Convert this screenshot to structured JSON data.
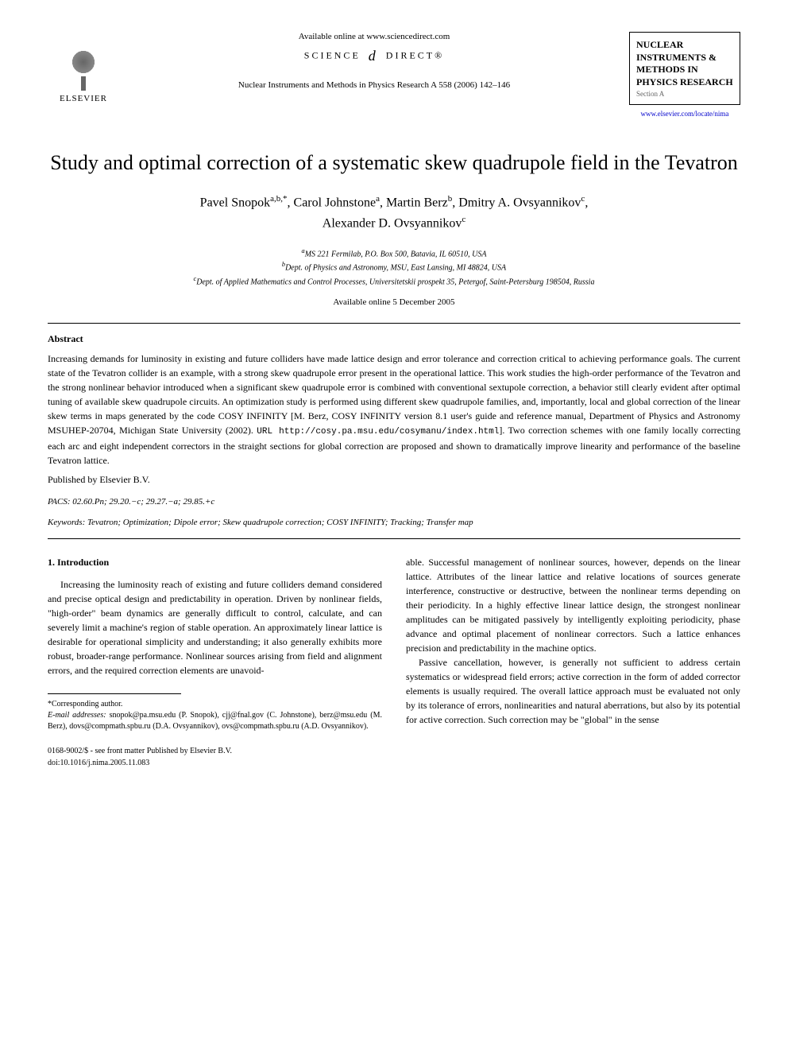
{
  "header": {
    "available_online": "Available online at www.sciencedirect.com",
    "science_direct_left": "SCIENCE",
    "science_direct_right": "DIRECT®",
    "journal_reference": "Nuclear Instruments and Methods in Physics Research A 558 (2006) 142–146",
    "publisher_name": "ELSEVIER",
    "journal_box_title": "NUCLEAR INSTRUMENTS & METHODS IN PHYSICS RESEARCH",
    "journal_box_section": "Section A",
    "journal_link": "www.elsevier.com/locate/nima"
  },
  "title": "Study and optimal correction of a systematic skew quadrupole field in the Tevatron",
  "authors_line1": "Pavel Snopok",
  "authors_sup1": "a,b,*",
  "authors_name2": ", Carol Johnstone",
  "authors_sup2": "a",
  "authors_name3": ", Martin Berz",
  "authors_sup3": "b",
  "authors_name4": ", Dmitry A. Ovsyannikov",
  "authors_sup4": "c",
  "authors_name5": "Alexander D. Ovsyannikov",
  "authors_sup5": "c",
  "affiliations": {
    "a": "MS 221 Fermilab, P.O. Box 500, Batavia, IL 60510, USA",
    "b": "Dept. of Physics and Astronomy, MSU, East Lansing, MI 48824, USA",
    "c": "Dept. of Applied Mathematics and Control Processes, Universitetskii prospekt 35, Petergof, Saint-Petersburg 198504, Russia"
  },
  "date_available": "Available online 5 December 2005",
  "abstract_heading": "Abstract",
  "abstract_text": "Increasing demands for luminosity in existing and future colliders have made lattice design and error tolerance and correction critical to achieving performance goals. The current state of the Tevatron collider is an example, with a strong skew quadrupole error present in the operational lattice. This work studies the high-order performance of the Tevatron and the strong nonlinear behavior introduced when a significant skew quadrupole error is combined with conventional sextupole correction, a behavior still clearly evident after optimal tuning of available skew quadrupole circuits. An optimization study is performed using different skew quadrupole families, and, importantly, local and global correction of the linear skew terms in maps generated by the code COSY INFINITY [M. Berz, COSY INFINITY version 8.1 user's guide and reference manual, Department of Physics and Astronomy MSUHEP-20704, Michigan State University (2002). ",
  "abstract_url_label": "URL ",
  "abstract_url": "http://cosy.pa.msu.edu/cosymanu/index.html",
  "abstract_text_after": "]. Two correction schemes with one family locally correcting each arc and eight independent correctors in the straight sections for global correction are proposed and shown to dramatically improve linearity and performance of the baseline Tevatron lattice.",
  "published_by": "Published by Elsevier B.V.",
  "pacs_label": "PACS:",
  "pacs_values": " 02.60.Pn; 29.20.−c; 29.27.−a; 29.85.+c",
  "keywords_label": "Keywords:",
  "keywords_values": " Tevatron; Optimization; Dipole error; Skew quadrupole correction; COSY INFINITY; Tracking; Transfer map",
  "intro_heading": "1. Introduction",
  "col1_p1": "Increasing the luminosity reach of existing and future colliders demand considered and precise optical design and predictability in operation. Driven by nonlinear fields, \"high-order\" beam dynamics are generally difficult to control, calculate, and can severely limit a machine's region of stable operation. An approximately linear lattice is desirable for operational simplicity and understanding; it also generally exhibits more robust, broader-range performance. Nonlinear sources arising from field and alignment errors, and the required correction elements are unavoid-",
  "col2_p1": "able. Successful management of nonlinear sources, however, depends on the linear lattice. Attributes of the linear lattice and relative locations of sources generate interference, constructive or destructive, between the nonlinear terms depending on their periodicity. In a highly effective linear lattice design, the strongest nonlinear amplitudes can be mitigated passively by intelligently exploiting periodicity, phase advance and optimal placement of nonlinear correctors. Such a lattice enhances precision and predictability in the machine optics.",
  "col2_p2": "Passive cancellation, however, is generally not sufficient to address certain systematics or widespread field errors; active correction in the form of added corrector elements is usually required. The overall lattice approach must be evaluated not only by its tolerance of errors, nonlinearities and natural aberrations, but also by its potential for active correction. Such correction may be \"global\" in the sense",
  "footnote_star": "*Corresponding author.",
  "footnote_email_label": "E-mail addresses:",
  "footnote_emails": " snopok@pa.msu.edu (P. Snopok), cjj@fnal.gov (C. Johnstone), berz@msu.edu (M. Berz), dovs@compmath.spbu.ru (D.A. Ovsyannikov), ovs@compmath.spbu.ru (A.D. Ovsyannikov).",
  "footer_copyright": "0168-9002/$ - see front matter Published by Elsevier B.V.",
  "footer_doi": "doi:10.1016/j.nima.2005.11.083"
}
